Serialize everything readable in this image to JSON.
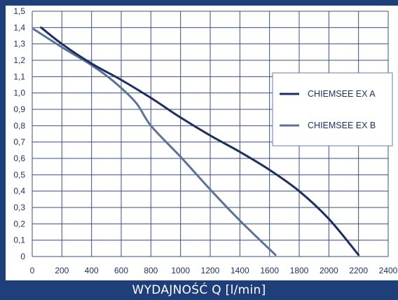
{
  "chart_data": {
    "type": "line",
    "title": "",
    "xlabel": "WYDAJNOŚĆ Q [l/min]",
    "ylabel": "",
    "xlim": [
      0,
      2400
    ],
    "ylim": [
      0,
      1.5
    ],
    "xticks": [
      0,
      200,
      400,
      600,
      800,
      1000,
      1200,
      1400,
      1600,
      1800,
      2000,
      2200,
      2400
    ],
    "xtick_labels": [
      "0",
      "200",
      "400",
      "600",
      "800",
      "1000",
      "1200",
      "1400",
      "1600",
      "1800",
      "2000",
      "2200",
      "2400"
    ],
    "yticks": [
      0,
      0.1,
      0.2,
      0.3,
      0.4,
      0.5,
      0.6,
      0.7,
      0.8,
      0.9,
      1.0,
      1.1,
      1.2,
      1.3,
      1.4,
      1.5
    ],
    "ytick_labels": [
      "0",
      "0,1",
      "0,2",
      "0,3",
      "0,4",
      "0,5",
      "0,6",
      "0,7",
      "0,8",
      "0,9",
      "1,0",
      "1,1",
      "1,2",
      "1,3",
      "1,4",
      "1,5"
    ],
    "grid": true,
    "legend_position": "right",
    "series": [
      {
        "name": "CHIEMSEE EX A",
        "color": "#1c2f5e",
        "points": [
          [
            60,
            1.4
          ],
          [
            200,
            1.3
          ],
          [
            400,
            1.18
          ],
          [
            600,
            1.08
          ],
          [
            800,
            0.97
          ],
          [
            1000,
            0.85
          ],
          [
            1200,
            0.74
          ],
          [
            1400,
            0.64
          ],
          [
            1600,
            0.53
          ],
          [
            1800,
            0.4
          ],
          [
            2000,
            0.23
          ],
          [
            2200,
            0.01
          ]
        ]
      },
      {
        "name": "CHIEMSEE EX B",
        "color": "#5d7396",
        "points": [
          [
            10,
            1.39
          ],
          [
            200,
            1.28
          ],
          [
            400,
            1.17
          ],
          [
            550,
            1.07
          ],
          [
            700,
            0.94
          ],
          [
            800,
            0.8
          ],
          [
            1000,
            0.61
          ],
          [
            1200,
            0.41
          ],
          [
            1400,
            0.22
          ],
          [
            1640,
            0.01
          ]
        ]
      }
    ]
  }
}
